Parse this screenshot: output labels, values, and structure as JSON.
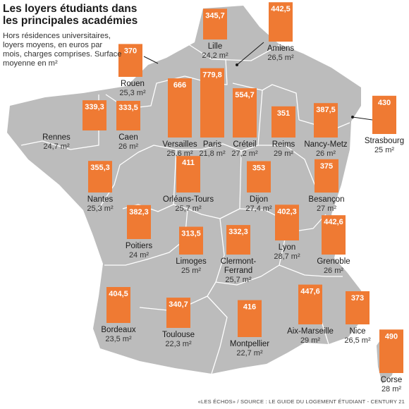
{
  "header": {
    "title": "Les loyers étudiants dans les principales académies",
    "subtitle": "Hors résidences universitaires, loyers moyens, en euros par mois, charges comprises. Surface moyenne en m²"
  },
  "footer": {
    "source": "«LES ÉCHOS» / SOURCE : LE GUIDE DU LOGEMENT ÉTUDIANT - CENTURY 21"
  },
  "colors": {
    "bar": "#ef7a33",
    "map": "#bcbcbc",
    "borders": "#ffffff"
  },
  "chart_data": {
    "type": "bar",
    "value_unit": "euros par mois",
    "surface_unit": "m²",
    "categories": [
      "Lille",
      "Amiens",
      "Rouen",
      "Rennes",
      "Caen",
      "Versailles",
      "Paris",
      "Créteil",
      "Reims",
      "Nancy-Metz",
      "Strasbourg",
      "Nantes",
      "Orléans-Tours",
      "Dijon",
      "Besançon",
      "Poitiers",
      "Limoges",
      "Clermont-Ferrand",
      "Lyon",
      "Grenoble",
      "Bordeaux",
      "Toulouse",
      "Montpellier",
      "Aix-Marseille",
      "Nice",
      "Corse"
    ],
    "academies": [
      {
        "name": "Lille",
        "value": 345.7,
        "value_label": "345,7",
        "surface": "24,2 m²"
      },
      {
        "name": "Amiens",
        "value": 442.5,
        "value_label": "442,5",
        "surface": "26,5 m²"
      },
      {
        "name": "Rouen",
        "value": 370,
        "value_label": "370",
        "surface": "25,3 m²"
      },
      {
        "name": "Rennes",
        "value": 339.3,
        "value_label": "339,3",
        "surface": "24,7 m²"
      },
      {
        "name": "Caen",
        "value": 333.5,
        "value_label": "333,5",
        "surface": "26 m²"
      },
      {
        "name": "Versailles",
        "value": 666,
        "value_label": "666",
        "surface": "25,6 m²"
      },
      {
        "name": "Paris",
        "value": 779.8,
        "value_label": "779,8",
        "surface": "21,8 m²"
      },
      {
        "name": "Créteil",
        "value": 554.7,
        "value_label": "554,7",
        "surface": "27,2 m²"
      },
      {
        "name": "Reims",
        "value": 351,
        "value_label": "351",
        "surface": "29 m²"
      },
      {
        "name": "Nancy-Metz",
        "value": 387.5,
        "value_label": "387,5",
        "surface": "26 m²"
      },
      {
        "name": "Strasbourg",
        "value": 430,
        "value_label": "430",
        "surface": "25 m²"
      },
      {
        "name": "Nantes",
        "value": 355.3,
        "value_label": "355,3",
        "surface": "25,3 m²"
      },
      {
        "name": "Orléans-Tours",
        "value": 411,
        "value_label": "411",
        "surface": "25,7 m²"
      },
      {
        "name": "Dijon",
        "value": 353,
        "value_label": "353",
        "surface": "27,4 m²"
      },
      {
        "name": "Besançon",
        "value": 375,
        "value_label": "375",
        "surface": "27 m²"
      },
      {
        "name": "Poitiers",
        "value": 382.3,
        "value_label": "382,3",
        "surface": "24 m²"
      },
      {
        "name": "Limoges",
        "value": 313.5,
        "value_label": "313,5",
        "surface": "25 m²"
      },
      {
        "name": "Clermont-Ferrand",
        "value": 332.3,
        "value_label": "332,3",
        "surface": "25,7 m²"
      },
      {
        "name": "Lyon",
        "value": 402.3,
        "value_label": "402,3",
        "surface": "28,7 m²"
      },
      {
        "name": "Grenoble",
        "value": 442.6,
        "value_label": "442,6",
        "surface": "26 m²"
      },
      {
        "name": "Bordeaux",
        "value": 404.5,
        "value_label": "404,5",
        "surface": "23,5 m²"
      },
      {
        "name": "Toulouse",
        "value": 340.7,
        "value_label": "340,7",
        "surface": "22,3 m²"
      },
      {
        "name": "Montpellier",
        "value": 416,
        "value_label": "416",
        "surface": "22,7 m²"
      },
      {
        "name": "Aix-Marseille",
        "value": 447.6,
        "value_label": "447,6",
        "surface": "29 m²"
      },
      {
        "name": "Nice",
        "value": 373,
        "value_label": "373",
        "surface": "26,5 m²"
      },
      {
        "name": "Corse",
        "value": 490,
        "value_label": "490",
        "surface": "28 m²"
      }
    ]
  }
}
